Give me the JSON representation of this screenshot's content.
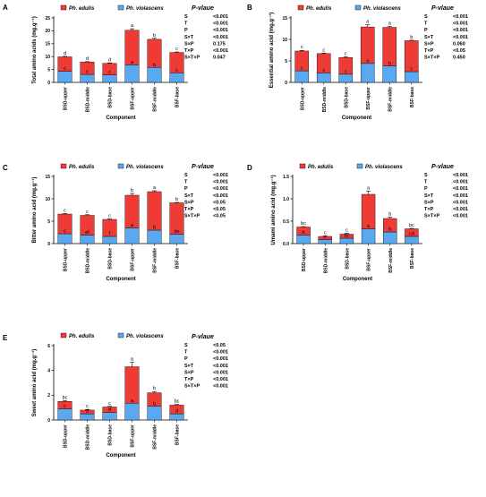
{
  "colors": {
    "edulis": "#ef3b36",
    "violascens": "#5aa9f0",
    "axis": "#000000"
  },
  "legend": {
    "edulis": "Ph. edulis",
    "violascens": "Ph. violascens"
  },
  "categories": [
    "BSD-upper",
    "BSD-middle",
    "BSD-base",
    "BSF-upper",
    "BSF-middle",
    "BSF-base"
  ],
  "chart_data": [
    {
      "type": "bar",
      "panel": "A",
      "stacked": true,
      "categories": [
        "BSD-upper",
        "BSD-middle",
        "BSD-base",
        "BSF-upper",
        "BSF-middle",
        "BSF-base"
      ],
      "series": [
        {
          "name": "Ph. violascens",
          "values": [
            4.3,
            3.1,
            2.9,
            6.8,
            5.8,
            3.7
          ],
          "letters": [
            "c",
            "c",
            "c",
            "a",
            "b",
            "c"
          ]
        },
        {
          "name": "Ph. edulis",
          "values": [
            5.6,
            4.8,
            4.5,
            13.4,
            10.9,
            7.9
          ]
        }
      ],
      "totals": [
        9.9,
        7.9,
        7.4,
        20.2,
        16.7,
        11.6
      ],
      "errors": [
        0.2,
        0.15,
        0.15,
        0.6,
        0.4,
        0.2
      ],
      "total_letters": [
        "d",
        "d",
        "d",
        "a",
        "b",
        "c"
      ],
      "ylabel": "Total amino acids (mg.g⁻¹)",
      "xlabel": "Component",
      "ylim": [
        0,
        25
      ],
      "yticks": [
        "0",
        "5",
        "10",
        "15",
        "20",
        "25"
      ],
      "stats_title": "P-vlaue",
      "stats": [
        {
          "term": "S",
          "value": "<0.001"
        },
        {
          "term": "T",
          "value": "<0.001"
        },
        {
          "term": "P",
          "value": "<0.001"
        },
        {
          "term": "S×T",
          "value": "<0.001"
        },
        {
          "term": "S×P",
          "value": "0.175"
        },
        {
          "term": "T×P",
          "value": "<0.001"
        },
        {
          "term": "S×T×P",
          "value": "0.047"
        }
      ]
    },
    {
      "type": "bar",
      "panel": "B",
      "stacked": true,
      "categories": [
        "BSD-upper",
        "BSD-middle",
        "BSD-base",
        "BSF-upper",
        "BSF-middle",
        "BSF-base"
      ],
      "series": [
        {
          "name": "Ph. violascens",
          "values": [
            2.7,
            2.2,
            1.9,
            4.4,
            3.8,
            2.5
          ],
          "letters": [
            "c",
            "c",
            "c",
            "a",
            "b",
            "c"
          ]
        },
        {
          "name": "Ph. edulis",
          "values": [
            4.6,
            4.5,
            3.9,
            8.5,
            9.0,
            7.2
          ]
        }
      ],
      "totals": [
        7.3,
        6.7,
        5.8,
        12.9,
        12.8,
        9.7
      ],
      "errors": [
        0.15,
        0.1,
        0.15,
        0.5,
        0.2,
        0.1
      ],
      "total_letters": [
        "c",
        "c",
        "c",
        "a",
        "a",
        "b"
      ],
      "ylabel": "Essential amino acid (mg.g⁻¹)",
      "xlabel": "Component",
      "ylim": [
        0,
        15
      ],
      "yticks": [
        "0",
        "5",
        "10",
        "15"
      ],
      "stats_title": "P-vlaue",
      "stats": [
        {
          "term": "S",
          "value": "<0.001"
        },
        {
          "term": "T",
          "value": "<0.001"
        },
        {
          "term": "P",
          "value": "<0.001"
        },
        {
          "term": "S×T",
          "value": "<0.001"
        },
        {
          "term": "S×P",
          "value": "0.060"
        },
        {
          "term": "T×P",
          "value": "<0.05"
        },
        {
          "term": "S×T×P",
          "value": "0.450"
        }
      ]
    },
    {
      "type": "bar",
      "panel": "C",
      "stacked": true,
      "categories": [
        "BSD-upper",
        "BSD-middle",
        "BSD-base",
        "BSF-upper",
        "BSF-middle",
        "BSF-base"
      ],
      "series": [
        {
          "name": "Ph. violascens",
          "values": [
            2.2,
            1.9,
            1.6,
            3.5,
            3.0,
            2.1
          ],
          "letters": [
            "c",
            "ef",
            "f",
            "a",
            "b",
            "de"
          ]
        },
        {
          "name": "Ph. edulis",
          "values": [
            4.4,
            4.4,
            3.8,
            7.3,
            8.6,
            7.0
          ]
        }
      ],
      "totals": [
        6.6,
        6.3,
        5.4,
        10.8,
        11.6,
        9.1
      ],
      "errors": [
        0.1,
        0.15,
        0.1,
        0.4,
        0.2,
        0.1
      ],
      "total_letters": [
        "c",
        "c",
        "c",
        "b",
        "a",
        "b"
      ],
      "ylabel": "Bitter amino acid (mg.g⁻¹)",
      "xlabel": "Component",
      "ylim": [
        0,
        15
      ],
      "yticks": [
        "0",
        "5",
        "10",
        "15"
      ],
      "stats_title": "P-vlaue",
      "stats": [
        {
          "term": "S",
          "value": "<0.001"
        },
        {
          "term": "T",
          "value": "<0.001"
        },
        {
          "term": "P",
          "value": "<0.001"
        },
        {
          "term": "S×T",
          "value": "<0.001"
        },
        {
          "term": "S×P",
          "value": "<0.05"
        },
        {
          "term": "T×P",
          "value": "<0.05"
        },
        {
          "term": "S×T×P",
          "value": "<0.05"
        }
      ]
    },
    {
      "type": "bar",
      "panel": "D",
      "stacked": true,
      "categories": [
        "BSD-upper",
        "BSD-middle",
        "BSD-base",
        "BSF-upper",
        "BSF-middle",
        "BSF-base"
      ],
      "series": [
        {
          "name": "Ph. violascens",
          "values": [
            0.19,
            0.09,
            0.12,
            0.33,
            0.26,
            0.16
          ],
          "letters": [
            "b",
            "c",
            "bc",
            "a",
            "b",
            "cd"
          ]
        },
        {
          "name": "Ph. edulis",
          "values": [
            0.18,
            0.07,
            0.09,
            0.77,
            0.3,
            0.17
          ]
        }
      ],
      "totals": [
        0.37,
        0.16,
        0.21,
        1.1,
        0.56,
        0.33
      ],
      "errors": [
        0.01,
        0.01,
        0.02,
        0.07,
        0.03,
        0.01
      ],
      "total_letters": [
        "bc",
        "c",
        "c",
        "a",
        "b",
        "bc"
      ],
      "ylabel": "Umami amino acid (mg.g⁻¹)",
      "xlabel": "Component",
      "ylim": [
        0,
        1.5
      ],
      "yticks": [
        "0.0",
        "0.5",
        "1.0",
        "1.5"
      ],
      "stats_title": "P-vlaue",
      "stats": [
        {
          "term": "S",
          "value": "<0.001"
        },
        {
          "term": "T",
          "value": "<0.001"
        },
        {
          "term": "P",
          "value": "<0.001"
        },
        {
          "term": "S×T",
          "value": "<0.001"
        },
        {
          "term": "S×P",
          "value": "<0.001"
        },
        {
          "term": "T×P",
          "value": "<0.001"
        },
        {
          "term": "S×T×P",
          "value": "<0.001"
        }
      ]
    },
    {
      "type": "bar",
      "panel": "E",
      "stacked": true,
      "categories": [
        "BSD-upper",
        "BSD-middle",
        "BSD-base",
        "BSF-upper",
        "BSF-middle",
        "BSF-base"
      ],
      "series": [
        {
          "name": "Ph. violascens",
          "values": [
            0.9,
            0.5,
            0.6,
            1.35,
            1.1,
            0.5
          ],
          "letters": [
            "c",
            "d",
            "d",
            "a",
            "b",
            "d"
          ]
        },
        {
          "name": "Ph. edulis",
          "values": [
            0.6,
            0.3,
            0.45,
            2.95,
            1.1,
            0.7
          ]
        }
      ],
      "totals": [
        1.5,
        0.8,
        1.05,
        4.3,
        2.2,
        1.2
      ],
      "errors": [
        0.05,
        0.05,
        0.05,
        0.35,
        0.1,
        0.05
      ],
      "total_letters": [
        "bc",
        "c",
        "c",
        "a",
        "b",
        "bc"
      ],
      "ylabel": "Sweet amino acid (mg.g⁻¹)",
      "xlabel": "Component",
      "ylim": [
        0,
        6
      ],
      "yticks": [
        "0",
        "2",
        "4",
        "6"
      ],
      "stats_title": "P-vlaue",
      "stats": [
        {
          "term": "S",
          "value": "<0.05"
        },
        {
          "term": "T",
          "value": "<0.001"
        },
        {
          "term": "P",
          "value": "<0.001"
        },
        {
          "term": "S×T",
          "value": "<0.001"
        },
        {
          "term": "S×P",
          "value": "<0.001"
        },
        {
          "term": "T×P",
          "value": "<0.001"
        },
        {
          "term": "S×T×P",
          "value": "<0.001"
        }
      ]
    }
  ]
}
